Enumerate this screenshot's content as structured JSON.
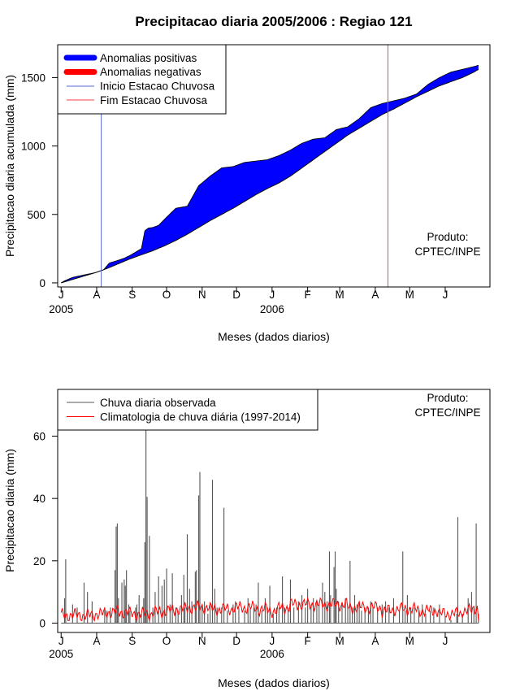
{
  "colors": {
    "positive": "#0000ff",
    "negative": "#ff0000",
    "rain_start": "#5a6bd6",
    "rain_end": "#ff4040",
    "observed": "#555555",
    "climatology": "#ff0000"
  },
  "chart_data": [
    {
      "type": "area",
      "title": "Precipitacao diaria 2005/2006 : Regiao 121",
      "xlabel": "Meses (dados diarios)",
      "ylabel": "Precipitacao diaria acumulada (mm)",
      "month_ticks": [
        "J",
        "A",
        "S",
        "O",
        "N",
        "D",
        "J",
        "F",
        "M",
        "A",
        "M",
        "J"
      ],
      "year_labels": [
        {
          "label": "2005",
          "month_index": 0
        },
        {
          "label": "2006",
          "month_index": 6
        }
      ],
      "xlim_days": [
        -3,
        374
      ],
      "ylim": [
        -30,
        1740
      ],
      "yticks": [
        0,
        500,
        1000,
        1500
      ],
      "legend": [
        "Anomalias positivas",
        "Anomalias negativas",
        "Inicio Estacao Chuvosa",
        "Fim Estacao Chuvosa"
      ],
      "legend_position": "top-left",
      "rainy_season_start_day": 35,
      "rainy_season_end_day": 285,
      "observed_cumulative": {
        "x": [
          0,
          3,
          10,
          20,
          30,
          37,
          42,
          48,
          55,
          60,
          65,
          70,
          73,
          76,
          80,
          85,
          92,
          100,
          110,
          120,
          130,
          140,
          150,
          160,
          170,
          180,
          190,
          200,
          210,
          220,
          230,
          240,
          250,
          260,
          270,
          280,
          290,
          300,
          310,
          320,
          330,
          340,
          350,
          360,
          364
        ],
        "y": [
          0,
          15,
          40,
          58,
          75,
          95,
          145,
          160,
          180,
          200,
          225,
          250,
          380,
          400,
          405,
          420,
          480,
          545,
          560,
          710,
          780,
          840,
          850,
          880,
          890,
          900,
          930,
          970,
          1020,
          1050,
          1060,
          1120,
          1140,
          1200,
          1280,
          1310,
          1330,
          1350,
          1380,
          1450,
          1500,
          1540,
          1560,
          1580,
          1590
        ]
      },
      "climatology_cumulative": {
        "x": [
          0,
          10,
          20,
          30,
          40,
          50,
          60,
          70,
          80,
          90,
          100,
          110,
          120,
          130,
          140,
          150,
          160,
          170,
          180,
          190,
          200,
          210,
          220,
          230,
          240,
          250,
          260,
          270,
          280,
          290,
          300,
          310,
          320,
          330,
          340,
          350,
          360,
          364
        ],
        "y": [
          0,
          25,
          50,
          75,
          105,
          140,
          175,
          205,
          235,
          270,
          310,
          355,
          405,
          455,
          500,
          545,
          595,
          645,
          690,
          730,
          780,
          840,
          900,
          960,
          1020,
          1080,
          1130,
          1180,
          1230,
          1270,
          1315,
          1360,
          1400,
          1440,
          1470,
          1500,
          1540,
          1560
        ]
      },
      "note": {
        "label": "Produto:",
        "value": "CPTEC/INPE"
      }
    },
    {
      "type": "line",
      "xlabel": "Meses (dados diarios)",
      "ylabel": "Precipitacao diaria (mm)",
      "month_ticks": [
        "J",
        "A",
        "S",
        "O",
        "N",
        "D",
        "J",
        "F",
        "M",
        "A",
        "M",
        "J"
      ],
      "year_labels": [
        {
          "label": "2005",
          "month_index": 0
        },
        {
          "label": "2006",
          "month_index": 6
        }
      ],
      "xlim_days": [
        -3,
        374
      ],
      "ylim": [
        -3,
        75
      ],
      "yticks": [
        0,
        20,
        40,
        60
      ],
      "legend": [
        "Chuva diaria observada",
        "Climatologia de chuva diária (1997-2014)"
      ],
      "legend_position": "top-left",
      "note": {
        "label": "Produto:",
        "value": "CPTEC/INPE"
      },
      "observed_daily_peaks": [
        [
          4,
          20.5
        ],
        [
          3,
          8
        ],
        [
          10,
          6
        ],
        [
          14,
          5
        ],
        [
          20,
          13
        ],
        [
          23,
          10
        ],
        [
          27,
          7
        ],
        [
          38,
          5
        ],
        [
          40,
          4
        ],
        [
          43,
          5
        ],
        [
          47,
          17
        ],
        [
          48,
          31
        ],
        [
          49,
          32
        ],
        [
          50,
          8
        ],
        [
          53,
          13
        ],
        [
          55,
          14
        ],
        [
          56,
          12
        ],
        [
          57,
          17
        ],
        [
          59,
          6
        ],
        [
          60,
          4
        ],
        [
          65,
          5
        ],
        [
          66,
          6
        ],
        [
          68,
          9
        ],
        [
          70,
          3
        ],
        [
          72,
          8
        ],
        [
          73,
          26
        ],
        [
          74,
          75
        ],
        [
          75,
          40.5
        ],
        [
          77,
          28
        ],
        [
          80,
          5
        ],
        [
          82,
          10
        ],
        [
          85,
          15
        ],
        [
          88,
          12
        ],
        [
          90,
          14
        ],
        [
          92,
          17.5
        ],
        [
          95,
          6
        ],
        [
          97,
          16
        ],
        [
          100,
          5
        ],
        [
          102,
          4
        ],
        [
          105,
          9
        ],
        [
          107,
          15.5
        ],
        [
          108,
          5
        ],
        [
          110,
          28.5
        ],
        [
          112,
          11
        ],
        [
          114,
          7
        ],
        [
          117,
          16.5
        ],
        [
          118,
          17
        ],
        [
          120,
          41
        ],
        [
          121,
          48.5
        ],
        [
          123,
          6
        ],
        [
          125,
          7
        ],
        [
          128,
          3
        ],
        [
          130,
          6
        ],
        [
          132,
          46
        ],
        [
          134,
          11
        ],
        [
          136,
          5
        ],
        [
          140,
          5
        ],
        [
          142,
          37
        ],
        [
          145,
          4
        ],
        [
          150,
          6
        ],
        [
          152,
          7
        ],
        [
          155,
          5
        ],
        [
          160,
          4
        ],
        [
          163,
          8
        ],
        [
          165,
          5
        ],
        [
          168,
          5
        ],
        [
          170,
          6
        ],
        [
          172,
          13
        ],
        [
          175,
          4
        ],
        [
          178,
          8
        ],
        [
          180,
          5
        ],
        [
          182,
          12
        ],
        [
          185,
          3
        ],
        [
          188,
          5
        ],
        [
          190,
          5
        ],
        [
          193,
          15
        ],
        [
          195,
          5
        ],
        [
          198,
          5
        ],
        [
          200,
          14
        ],
        [
          203,
          5
        ],
        [
          207,
          7
        ],
        [
          210,
          9
        ],
        [
          213,
          5
        ],
        [
          215,
          11
        ],
        [
          218,
          6
        ],
        [
          220,
          8
        ],
        [
          223,
          7
        ],
        [
          225,
          6
        ],
        [
          228,
          13
        ],
        [
          230,
          10
        ],
        [
          232,
          7
        ],
        [
          234,
          23
        ],
        [
          235,
          9
        ],
        [
          238,
          18
        ],
        [
          239,
          23
        ],
        [
          240,
          11
        ],
        [
          242,
          7
        ],
        [
          245,
          6
        ],
        [
          248,
          8
        ],
        [
          250,
          5
        ],
        [
          252,
          20
        ],
        [
          254,
          5
        ],
        [
          256,
          9
        ],
        [
          258,
          6
        ],
        [
          260,
          7
        ],
        [
          262,
          4
        ],
        [
          265,
          5
        ],
        [
          268,
          5
        ],
        [
          270,
          7
        ],
        [
          272,
          5
        ],
        [
          276,
          5
        ],
        [
          280,
          6
        ],
        [
          283,
          7
        ],
        [
          286,
          5
        ],
        [
          290,
          8
        ],
        [
          295,
          4
        ],
        [
          298,
          23
        ],
        [
          300,
          4
        ],
        [
          302,
          9
        ],
        [
          305,
          5
        ],
        [
          308,
          5
        ],
        [
          312,
          4
        ],
        [
          315,
          6
        ],
        [
          318,
          3
        ],
        [
          322,
          4
        ],
        [
          325,
          5
        ],
        [
          330,
          6
        ],
        [
          335,
          2
        ],
        [
          340,
          1
        ],
        [
          345,
          3
        ],
        [
          346,
          34
        ],
        [
          350,
          3
        ],
        [
          355,
          8
        ],
        [
          358,
          10
        ],
        [
          360,
          5
        ],
        [
          362,
          32
        ],
        [
          364,
          3
        ]
      ]
    }
  ]
}
